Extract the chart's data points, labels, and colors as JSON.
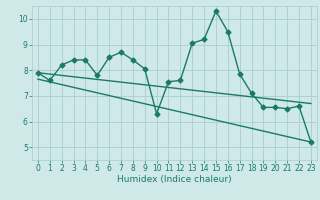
{
  "xlabel": "Humidex (Indice chaleur)",
  "background_color": "#cfe8e8",
  "grid_color": "#a8cece",
  "line_color": "#1a7a6a",
  "xlim": [
    -0.5,
    23.5
  ],
  "ylim": [
    4.5,
    10.5
  ],
  "xticks": [
    0,
    1,
    2,
    3,
    4,
    5,
    6,
    7,
    8,
    9,
    10,
    11,
    12,
    13,
    14,
    15,
    16,
    17,
    18,
    19,
    20,
    21,
    22,
    23
  ],
  "yticks": [
    5,
    6,
    7,
    8,
    9,
    10
  ],
  "series1": [
    7.9,
    7.6,
    8.2,
    8.4,
    8.4,
    7.8,
    8.5,
    8.7,
    8.4,
    8.05,
    6.3,
    7.55,
    7.6,
    9.05,
    9.2,
    10.3,
    9.5,
    7.85,
    7.1,
    6.55,
    6.55,
    6.5,
    6.6,
    5.2
  ],
  "trend1_x": [
    0,
    23
  ],
  "trend1_y": [
    7.9,
    6.7
  ],
  "trend2_x": [
    0,
    23
  ],
  "trend2_y": [
    7.65,
    5.2
  ],
  "marker": "D",
  "marker_size": 2.5,
  "line_width": 1.0
}
